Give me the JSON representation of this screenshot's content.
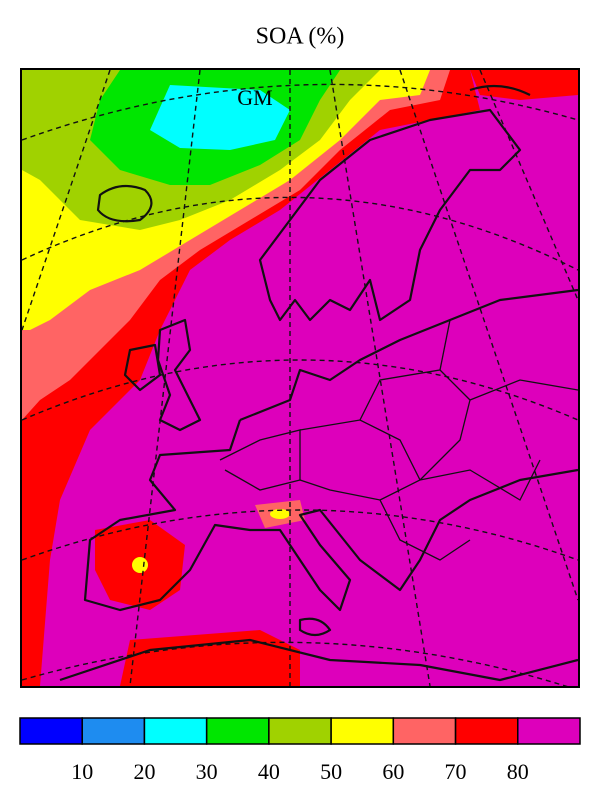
{
  "title": "SOA (%)",
  "map": {
    "label": "GM"
  },
  "colorbar": {
    "colors": [
      "#0000ff",
      "#1e8cf0",
      "#00ffff",
      "#00e600",
      "#a0d200",
      "#ffff00",
      "#ff6464",
      "#ff0000",
      "#dd00bb"
    ],
    "ticks": [
      10,
      20,
      30,
      40,
      50,
      60,
      70,
      80
    ]
  }
}
